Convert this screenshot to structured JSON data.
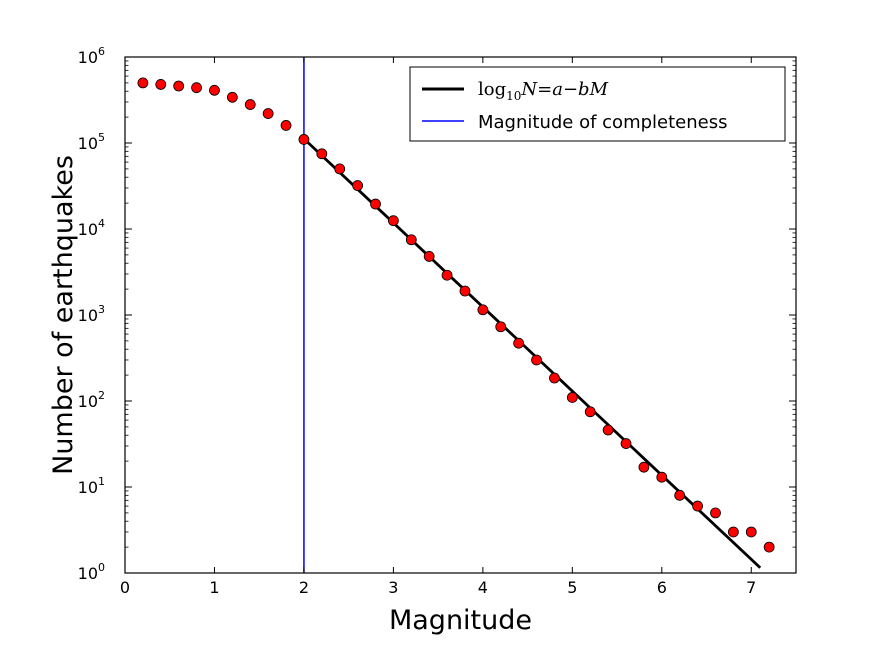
{
  "chart_data": {
    "type": "scatter",
    "title": "",
    "xlabel": "Magnitude",
    "ylabel": "Number of earthquakes",
    "xlim": [
      0,
      7.5
    ],
    "ylim": [
      1,
      1000000
    ],
    "yscale": "log",
    "grid": false,
    "legend_position": "top-right",
    "x_ticks": [
      0,
      1,
      2,
      3,
      4,
      5,
      6,
      7
    ],
    "x_tick_labels": [
      "0",
      "1",
      "2",
      "3",
      "4",
      "5",
      "6",
      "7"
    ],
    "y_ticks": [
      1,
      10,
      100,
      1000,
      10000,
      100000,
      1000000
    ],
    "y_tick_bases": [
      "10",
      "10",
      "10",
      "10",
      "10",
      "10",
      "10"
    ],
    "y_tick_exponents": [
      "0",
      "1",
      "2",
      "3",
      "4",
      "5",
      "6"
    ],
    "series": [
      {
        "kind": "points",
        "color": "#ff0000",
        "x": [
          0.2,
          0.4,
          0.6,
          0.8,
          1.0,
          1.2,
          1.4,
          1.6,
          1.8,
          2.0,
          2.2,
          2.4,
          2.6,
          2.8,
          3.0,
          3.2,
          3.4,
          3.6,
          3.8,
          4.0,
          4.2,
          4.4,
          4.6,
          4.8,
          5.0,
          5.2,
          5.4,
          5.6,
          5.8,
          6.0,
          6.2,
          6.4,
          6.6,
          6.8,
          7.0,
          7.2
        ],
        "y": [
          500000,
          480000,
          460000,
          440000,
          410000,
          340000,
          280000,
          220000,
          160000,
          110000,
          75000,
          50000,
          32000,
          19500,
          12500,
          7500,
          4800,
          2900,
          1900,
          1150,
          730,
          470,
          300,
          185,
          110,
          75,
          46,
          32,
          17,
          13,
          8,
          6,
          5,
          3,
          3,
          2
        ]
      },
      {
        "name_parts": {
          "prefix": "log",
          "sub": "10",
          "rest": "N=a−bM"
        },
        "kind": "line",
        "color": "#000000",
        "x": [
          2.0,
          7.1
        ],
        "y": [
          112000,
          1.15
        ]
      },
      {
        "name": "Magnitude of completeness",
        "kind": "vline",
        "color": "#0000ff",
        "x": 2.0
      }
    ]
  }
}
